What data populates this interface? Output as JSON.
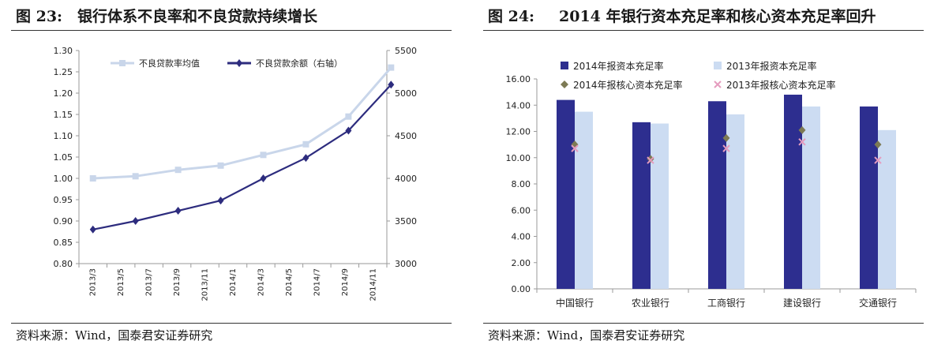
{
  "charts": [
    {
      "fig_no": "图 23:",
      "title": "银行体系不良率和不良贷款持续增长",
      "source": "资料来源：Wind，国泰君安证券研究"
    },
    {
      "fig_no": "图 24:",
      "title": "2014 年银行资本充足率和核心资本充足率回升",
      "source": "资料来源：Wind，国泰君安证券研究"
    }
  ],
  "chart_data": [
    {
      "type": "line",
      "title": "银行体系不良率和不良贷款持续增长",
      "categories": [
        "2013/3",
        "2013/5",
        "2013/7",
        "2013/9",
        "2013/11",
        "2014/1",
        "2014/3",
        "2014/5",
        "2014/7",
        "2014/9",
        "2014/11"
      ],
      "x": [
        "2013/3",
        "2013/6",
        "2013/9",
        "2013/12",
        "2014/3",
        "2014/6",
        "2014/9",
        "2014/12"
      ],
      "series": [
        {
          "name": "不良贷款率均值",
          "axis": "left",
          "color": "#c9d6ea",
          "marker": "square",
          "values": [
            1.0,
            1.005,
            1.02,
            1.03,
            1.055,
            1.08,
            1.145,
            1.26
          ]
        },
        {
          "name": "不良贷款余额（右轴）",
          "axis": "right",
          "color": "#2d2c7e",
          "marker": "diamond",
          "values": [
            3400,
            3500,
            3620,
            3740,
            4000,
            4240,
            4560,
            5100
          ]
        }
      ],
      "y_left": {
        "range": [
          0.8,
          1.3
        ],
        "ticks": [
          "0.80",
          "0.85",
          "0.90",
          "0.95",
          "1.00",
          "1.05",
          "1.10",
          "1.15",
          "1.20",
          "1.25",
          "1.30"
        ]
      },
      "y_right": {
        "range": [
          3000,
          5500
        ],
        "ticks": [
          "3000",
          "3500",
          "4000",
          "4500",
          "5000",
          "5500"
        ]
      },
      "grid": false,
      "legend": "top-left"
    },
    {
      "type": "bar",
      "title": "2014 年银行资本充足率和核心资本充足率回升",
      "categories": [
        "中国银行",
        "农业银行",
        "工商银行",
        "建设银行",
        "交通银行"
      ],
      "series": [
        {
          "name": "2014年报资本充足率",
          "kind": "bar",
          "color": "#2d2e8f",
          "values": [
            14.4,
            12.7,
            14.3,
            14.8,
            13.9
          ]
        },
        {
          "name": "2013年报资本充足率",
          "kind": "bar",
          "color": "#ccdcf2",
          "values": [
            13.5,
            12.6,
            13.3,
            13.9,
            12.1
          ]
        },
        {
          "name": "2014年报核心资本充足率",
          "kind": "marker",
          "marker": "diamond",
          "color": "#7d7a54",
          "values": [
            11.0,
            9.9,
            11.5,
            12.1,
            11.0
          ]
        },
        {
          "name": "2013年报核心资本充足率",
          "kind": "marker",
          "marker": "x",
          "color": "#e59cbf",
          "values": [
            10.7,
            9.8,
            10.7,
            11.2,
            9.8
          ]
        }
      ],
      "y": {
        "range": [
          0,
          16
        ],
        "ticks": [
          "0.00",
          "2.00",
          "4.00",
          "6.00",
          "8.00",
          "10.00",
          "12.00",
          "14.00",
          "16.00"
        ]
      },
      "grid": false,
      "legend": "top-left"
    }
  ]
}
